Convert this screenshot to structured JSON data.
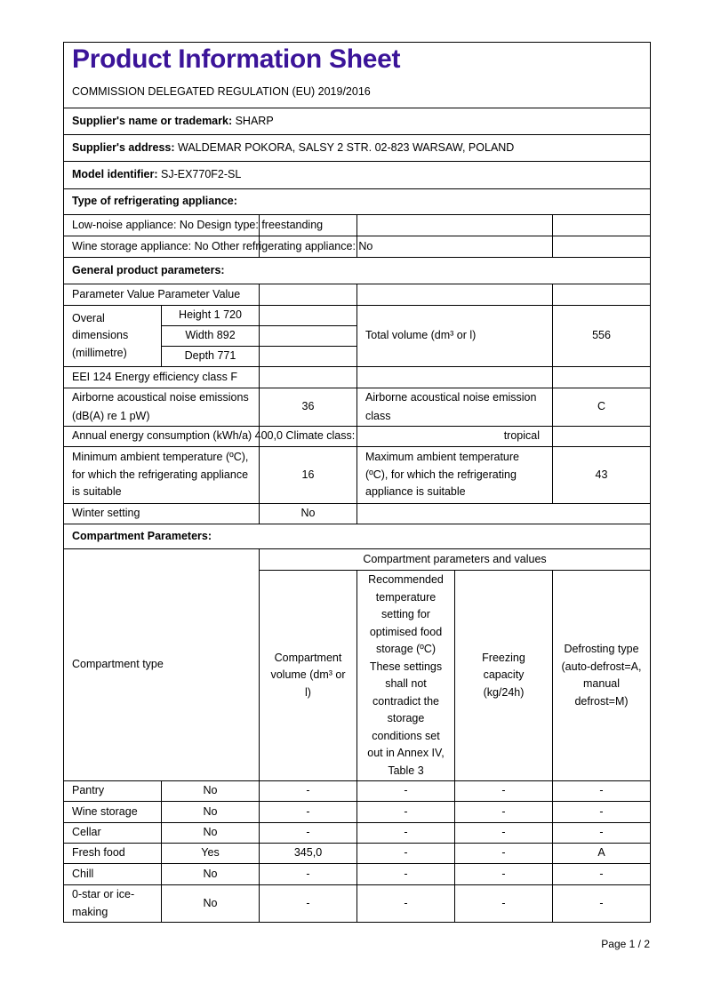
{
  "title": "Product Information Sheet",
  "regulation": "COMMISSION DELEGATED REGULATION (EU) 2019/2016",
  "supplier_name": {
    "label": "Supplier's name or trademark:",
    "value": " SHARP"
  },
  "supplier_address": {
    "label": "Supplier's address:",
    "value": " WALDEMAR POKORA, SALSY 2 STR. 02-823 WARSAW, POLAND"
  },
  "model": {
    "label": "Model identifier:",
    "value": " SJ-EX770F2-SL"
  },
  "type_heading": "Type of refrigerating appliance:",
  "type_row1": "Low-noise appliance: No Design type: freestanding",
  "type_row2": "Wine storage appliance: No Other refrigerating appliance: No",
  "general_heading": "General product parameters:",
  "param_header": "Parameter Value Parameter Value",
  "dimensions_label": "Overal dimensions (millimetre)",
  "height": "Height 1 720",
  "width": "Width 892",
  "depth": "Depth 771",
  "total_volume_label": "Total volume (dm³ or l)",
  "total_volume": "556",
  "eei": "EEI 124 Energy efficiency class F",
  "noise_label": "Airborne acoustical noise emissions (dB(A) re 1 pW)",
  "noise_value": "36",
  "noise_class_label": "Airborne acoustical noise emission class",
  "noise_class": "C",
  "annual": "Annual energy consumption (kWh/a) 400,0 Climate class:",
  "climate": "tropical",
  "min_temp_label": "Minimum ambient temperature (ºC), for which the refrigerating appliance is suitable",
  "min_temp": "16",
  "max_temp_label": "Maximum ambient temperature (ºC), for which the refrigerating appliance is suitable",
  "max_temp": "43",
  "winter_label": "Winter setting",
  "winter": "No",
  "compartment_heading": "Compartment Parameters:",
  "comp_type_header": "Compartment type",
  "comp_params_header": "Compartment parameters and values",
  "comp_volume_header": "Compartment volume (dm³ or l)",
  "comp_temp_header": "Recommended temperature setting for optimised food storage (ºC) These settings shall not contradict the storage conditions set out in Annex IV, Table 3",
  "comp_freeze_header": "Freezing capacity (kg/24h)",
  "comp_defrost_header": "Defrosting type (auto-defrost=A, manual defrost=M)",
  "compartments": [
    {
      "name": "Pantry",
      "present": "No",
      "volume": "-",
      "temp": "-",
      "freeze": "-",
      "defrost": "-"
    },
    {
      "name": "Wine storage",
      "present": "No",
      "volume": "-",
      "temp": "-",
      "freeze": "-",
      "defrost": "-"
    },
    {
      "name": "Cellar",
      "present": "No",
      "volume": "-",
      "temp": "-",
      "freeze": "-",
      "defrost": "-"
    },
    {
      "name": "Fresh food",
      "present": "Yes",
      "volume": "345,0",
      "temp": "-",
      "freeze": "-",
      "defrost": "A"
    },
    {
      "name": "Chill",
      "present": "No",
      "volume": "-",
      "temp": "-",
      "freeze": "-",
      "defrost": "-"
    },
    {
      "name": "0-star or ice-making",
      "present": "No",
      "volume": "-",
      "temp": "-",
      "freeze": "-",
      "defrost": "-"
    }
  ],
  "page_number": "Page 1 / 2"
}
